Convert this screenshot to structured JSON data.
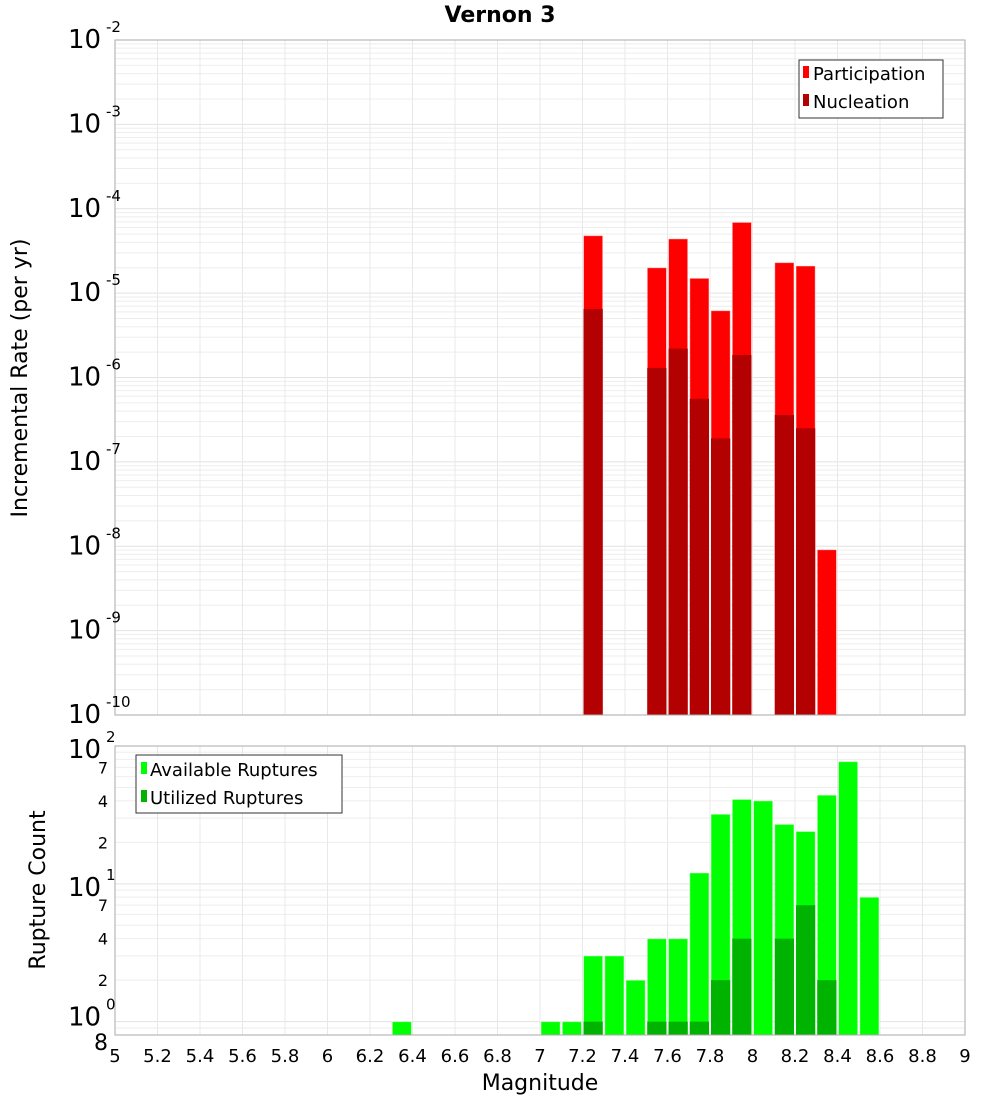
{
  "chart_data": [
    {
      "type": "bar",
      "title": "Vernon 3",
      "xlabel": "",
      "ylabel": "Incremental Rate (per yr)",
      "yscale": "log",
      "ylim": [
        1e-10,
        0.01
      ],
      "xlim": [
        5,
        9
      ],
      "bar_width": 0.1,
      "y_tick_exponents": [
        "-2",
        "-3",
        "-4",
        "-5",
        "-6",
        "-7",
        "-8",
        "-9",
        "-10"
      ],
      "y_tick_base": "10",
      "legend": {
        "position": "top-right",
        "entries": [
          "Participation",
          "Nucleation"
        ]
      },
      "colors": {
        "Participation": "#ff0000",
        "Nucleation": "#b30000"
      },
      "x": [
        7.25,
        7.55,
        7.65,
        7.75,
        7.85,
        7.95,
        8.15,
        8.25,
        8.35
      ],
      "series": [
        {
          "name": "Participation",
          "values": [
            4.8e-05,
            2e-05,
            4.4e-05,
            1.5e-05,
            6.2e-06,
            6.9e-05,
            2.3e-05,
            2.1e-05,
            9.1e-09
          ]
        },
        {
          "name": "Nucleation",
          "values": [
            6.5e-06,
            1.3e-06,
            2.2e-06,
            5.6e-07,
            1.9e-07,
            1.85e-06,
            3.6e-07,
            2.5e-07,
            null
          ]
        }
      ],
      "grid": true
    },
    {
      "type": "bar",
      "xlabel": "Magnitude",
      "ylabel": "Rupture Count",
      "yscale": "log",
      "ylim": [
        0.8,
        100
      ],
      "xlim": [
        5,
        9
      ],
      "bar_width": 0.1,
      "x_ticks": [
        "5",
        "5.2",
        "5.4",
        "5.6",
        "5.8",
        "6",
        "6.2",
        "6.4",
        "6.6",
        "6.8",
        "7",
        "7.2",
        "7.4",
        "7.6",
        "7.8",
        "8",
        "8.2",
        "8.4",
        "8.6",
        "8.8",
        "9"
      ],
      "y_major_exponents": [
        "0",
        "1",
        "2"
      ],
      "y_tick_base": "10",
      "y_minor_labels": [
        "2",
        "4",
        "7"
      ],
      "y_bottom_label": "8",
      "legend": {
        "position": "top-left",
        "entries": [
          "Available Ruptures",
          "Utilized Ruptures"
        ]
      },
      "colors": {
        "Available Ruptures": "#00ff00",
        "Utilized Ruptures": "#00b300"
      },
      "x": [
        6.35,
        7.05,
        7.15,
        7.25,
        7.35,
        7.45,
        7.55,
        7.65,
        7.75,
        7.85,
        7.95,
        8.05,
        8.15,
        8.25,
        8.35,
        8.45,
        8.55
      ],
      "series": [
        {
          "name": "Available Ruptures",
          "values": [
            1,
            1,
            1,
            3,
            3,
            2,
            4,
            4,
            12,
            32,
            41,
            40,
            27,
            24,
            44,
            77,
            8
          ]
        },
        {
          "name": "Utilized Ruptures",
          "values": [
            null,
            null,
            null,
            1,
            null,
            null,
            1,
            1,
            1,
            2,
            4,
            null,
            4,
            7,
            2,
            null,
            null
          ]
        }
      ],
      "grid": true
    }
  ]
}
